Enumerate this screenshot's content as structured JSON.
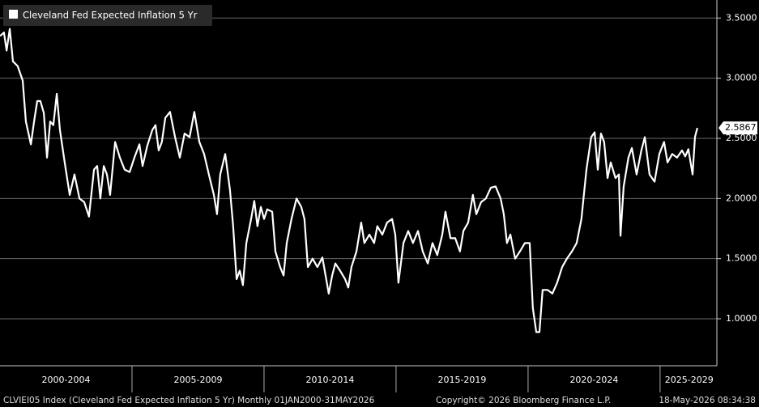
{
  "chart_data": {
    "type": "line",
    "series": [
      {
        "name": "Cleveland Fed Expected Inflation 5 Yr",
        "color": "#ffffff",
        "x": [
          2000.0,
          2000.15,
          2000.25,
          2000.37,
          2000.49,
          2000.67,
          2000.86,
          2000.98,
          2001.17,
          2001.29,
          2001.41,
          2001.53,
          2001.66,
          2001.78,
          2001.9,
          2002.02,
          2002.15,
          2002.27,
          2002.45,
          2002.64,
          2002.82,
          2003.01,
          2003.19,
          2003.37,
          2003.56,
          2003.68,
          2003.8,
          2003.93,
          2004.05,
          2004.17,
          2004.36,
          2004.54,
          2004.72,
          2004.91,
          2005.09,
          2005.28,
          2005.4,
          2005.58,
          2005.77,
          2005.89,
          2006.01,
          2006.13,
          2006.26,
          2006.44,
          2006.63,
          2006.81,
          2006.99,
          2007.18,
          2007.36,
          2007.55,
          2007.73,
          2007.91,
          2008.1,
          2008.22,
          2008.34,
          2008.53,
          2008.71,
          2008.83,
          2008.96,
          2009.08,
          2009.2,
          2009.33,
          2009.51,
          2009.63,
          2009.75,
          2009.88,
          2010.0,
          2010.12,
          2010.31,
          2010.43,
          2010.61,
          2010.74,
          2010.86,
          2011.04,
          2011.23,
          2011.41,
          2011.53,
          2011.66,
          2011.84,
          2012.02,
          2012.21,
          2012.33,
          2012.45,
          2012.58,
          2012.7,
          2012.88,
          2013.07,
          2013.19,
          2013.31,
          2013.5,
          2013.68,
          2013.8,
          2013.99,
          2014.17,
          2014.29,
          2014.48,
          2014.66,
          2014.85,
          2014.97,
          2015.09,
          2015.28,
          2015.46,
          2015.64,
          2015.83,
          2016.01,
          2016.2,
          2016.38,
          2016.56,
          2016.75,
          2016.87,
          2017.06,
          2017.24,
          2017.42,
          2017.55,
          2017.73,
          2017.91,
          2018.04,
          2018.22,
          2018.4,
          2018.59,
          2018.77,
          2018.96,
          2019.08,
          2019.2,
          2019.33,
          2019.51,
          2019.69,
          2019.88,
          2020.06,
          2020.18,
          2020.31,
          2020.43,
          2020.55,
          2020.74,
          2020.92,
          2021.1,
          2021.29,
          2021.47,
          2021.66,
          2021.84,
          2022.02,
          2022.21,
          2022.39,
          2022.52,
          2022.64,
          2022.76,
          2022.88,
          2023.01,
          2023.13,
          2023.31,
          2023.44,
          2023.5,
          2023.62,
          2023.8,
          2023.93,
          2024.11,
          2024.29,
          2024.42,
          2024.6,
          2024.79,
          2024.97,
          2025.15,
          2025.28,
          2025.46,
          2025.64,
          2025.83,
          2025.95,
          2026.07,
          2026.23,
          2026.32,
          2026.41
        ],
        "values": [
          3.35,
          3.38,
          3.23,
          3.41,
          3.14,
          3.1,
          2.98,
          2.64,
          2.45,
          2.64,
          2.81,
          2.81,
          2.71,
          2.34,
          2.64,
          2.61,
          2.87,
          2.57,
          2.3,
          2.03,
          2.2,
          2.0,
          1.97,
          1.85,
          2.24,
          2.27,
          2.0,
          2.27,
          2.2,
          2.03,
          2.47,
          2.34,
          2.24,
          2.22,
          2.34,
          2.45,
          2.27,
          2.44,
          2.57,
          2.61,
          2.4,
          2.47,
          2.67,
          2.72,
          2.51,
          2.34,
          2.54,
          2.51,
          2.72,
          2.47,
          2.37,
          2.2,
          2.03,
          1.87,
          2.2,
          2.37,
          2.07,
          1.77,
          1.33,
          1.4,
          1.28,
          1.63,
          1.83,
          1.98,
          1.77,
          1.93,
          1.83,
          1.91,
          1.89,
          1.56,
          1.43,
          1.36,
          1.63,
          1.83,
          2.0,
          1.93,
          1.83,
          1.43,
          1.5,
          1.43,
          1.51,
          1.36,
          1.21,
          1.36,
          1.46,
          1.4,
          1.33,
          1.26,
          1.43,
          1.56,
          1.8,
          1.63,
          1.7,
          1.63,
          1.77,
          1.7,
          1.8,
          1.83,
          1.7,
          1.3,
          1.63,
          1.73,
          1.63,
          1.73,
          1.56,
          1.46,
          1.63,
          1.53,
          1.7,
          1.89,
          1.67,
          1.67,
          1.56,
          1.73,
          1.8,
          2.03,
          1.87,
          1.97,
          2.0,
          2.09,
          2.1,
          2.0,
          1.87,
          1.63,
          1.7,
          1.5,
          1.56,
          1.63,
          1.63,
          1.09,
          0.89,
          0.89,
          1.24,
          1.24,
          1.21,
          1.3,
          1.43,
          1.5,
          1.56,
          1.63,
          1.83,
          2.24,
          2.51,
          2.55,
          2.24,
          2.54,
          2.47,
          2.17,
          2.3,
          2.17,
          2.2,
          1.69,
          2.1,
          2.34,
          2.42,
          2.2,
          2.4,
          2.51,
          2.2,
          2.14,
          2.37,
          2.47,
          2.3,
          2.37,
          2.34,
          2.4,
          2.35,
          2.41,
          2.2,
          2.51,
          2.5867
        ]
      }
    ],
    "xlim": [
      2000,
      2027.15
    ],
    "xticks": [
      {
        "value": 2002.5,
        "label": "2000-2004"
      },
      {
        "value": 2007.5,
        "label": "2005-2009"
      },
      {
        "value": 2012.5,
        "label": "2010-2014"
      },
      {
        "value": 2017.5,
        "label": "2015-2019"
      },
      {
        "value": 2022.5,
        "label": "2020-2024"
      },
      {
        "value": 2026.1,
        "label": "2025-2029"
      }
    ],
    "ylim": [
      0.61,
      3.65
    ],
    "yticks": [
      {
        "value": 1.0,
        "label": "1.0000"
      },
      {
        "value": 1.5,
        "label": "1.5000"
      },
      {
        "value": 2.0,
        "label": "2.0000"
      },
      {
        "value": 2.5,
        "label": "2.5000"
      },
      {
        "value": 3.0,
        "label": "3.0000"
      },
      {
        "value": 3.5,
        "label": "3.5000"
      }
    ],
    "grid": true,
    "legend": "top-left",
    "footer": {
      "source": "CLVIEI05 Index (Cleveland Fed Expected Inflation 5 Yr) Monthly 01JAN2000-31MAY2026",
      "copyright": "Copyright© 2026 Bloomberg Finance L.P.",
      "timestamp": "18-May-2026 08:34:38"
    }
  }
}
